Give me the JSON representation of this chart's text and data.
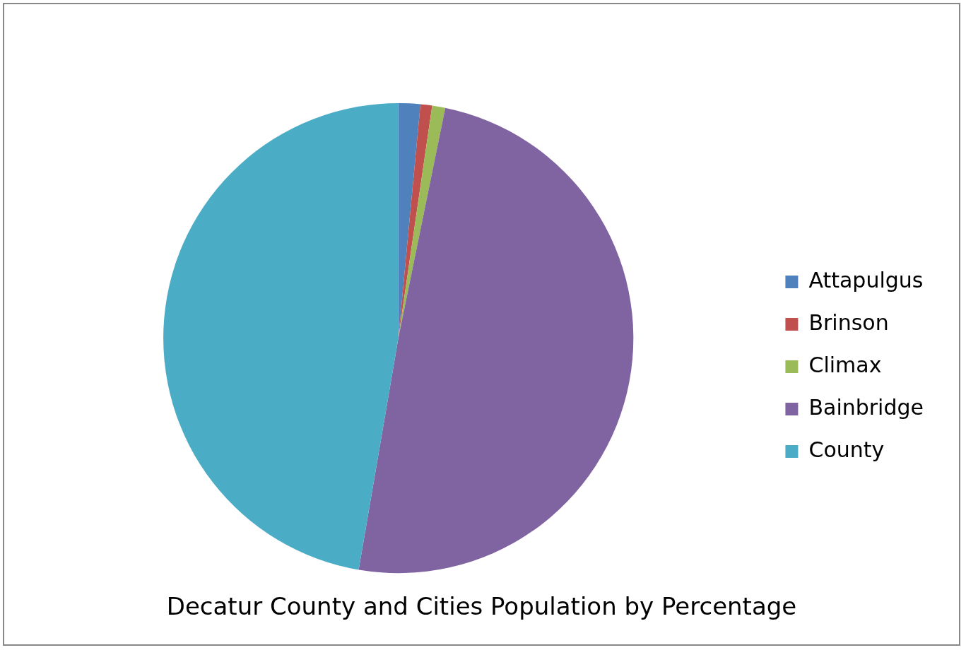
{
  "chart_data": {
    "type": "pie",
    "title": "Decatur County and Cities Population by Percentage",
    "categories": [
      "Attapulgus",
      "Brinson",
      "Climax",
      "Bainbridge",
      "County"
    ],
    "values": [
      1.5,
      0.8,
      0.9,
      49.5,
      47.3
    ],
    "colors": [
      "#4f81bd",
      "#c0504d",
      "#9bbb59",
      "#8064a2",
      "#4bacc6"
    ],
    "legend": "right"
  }
}
